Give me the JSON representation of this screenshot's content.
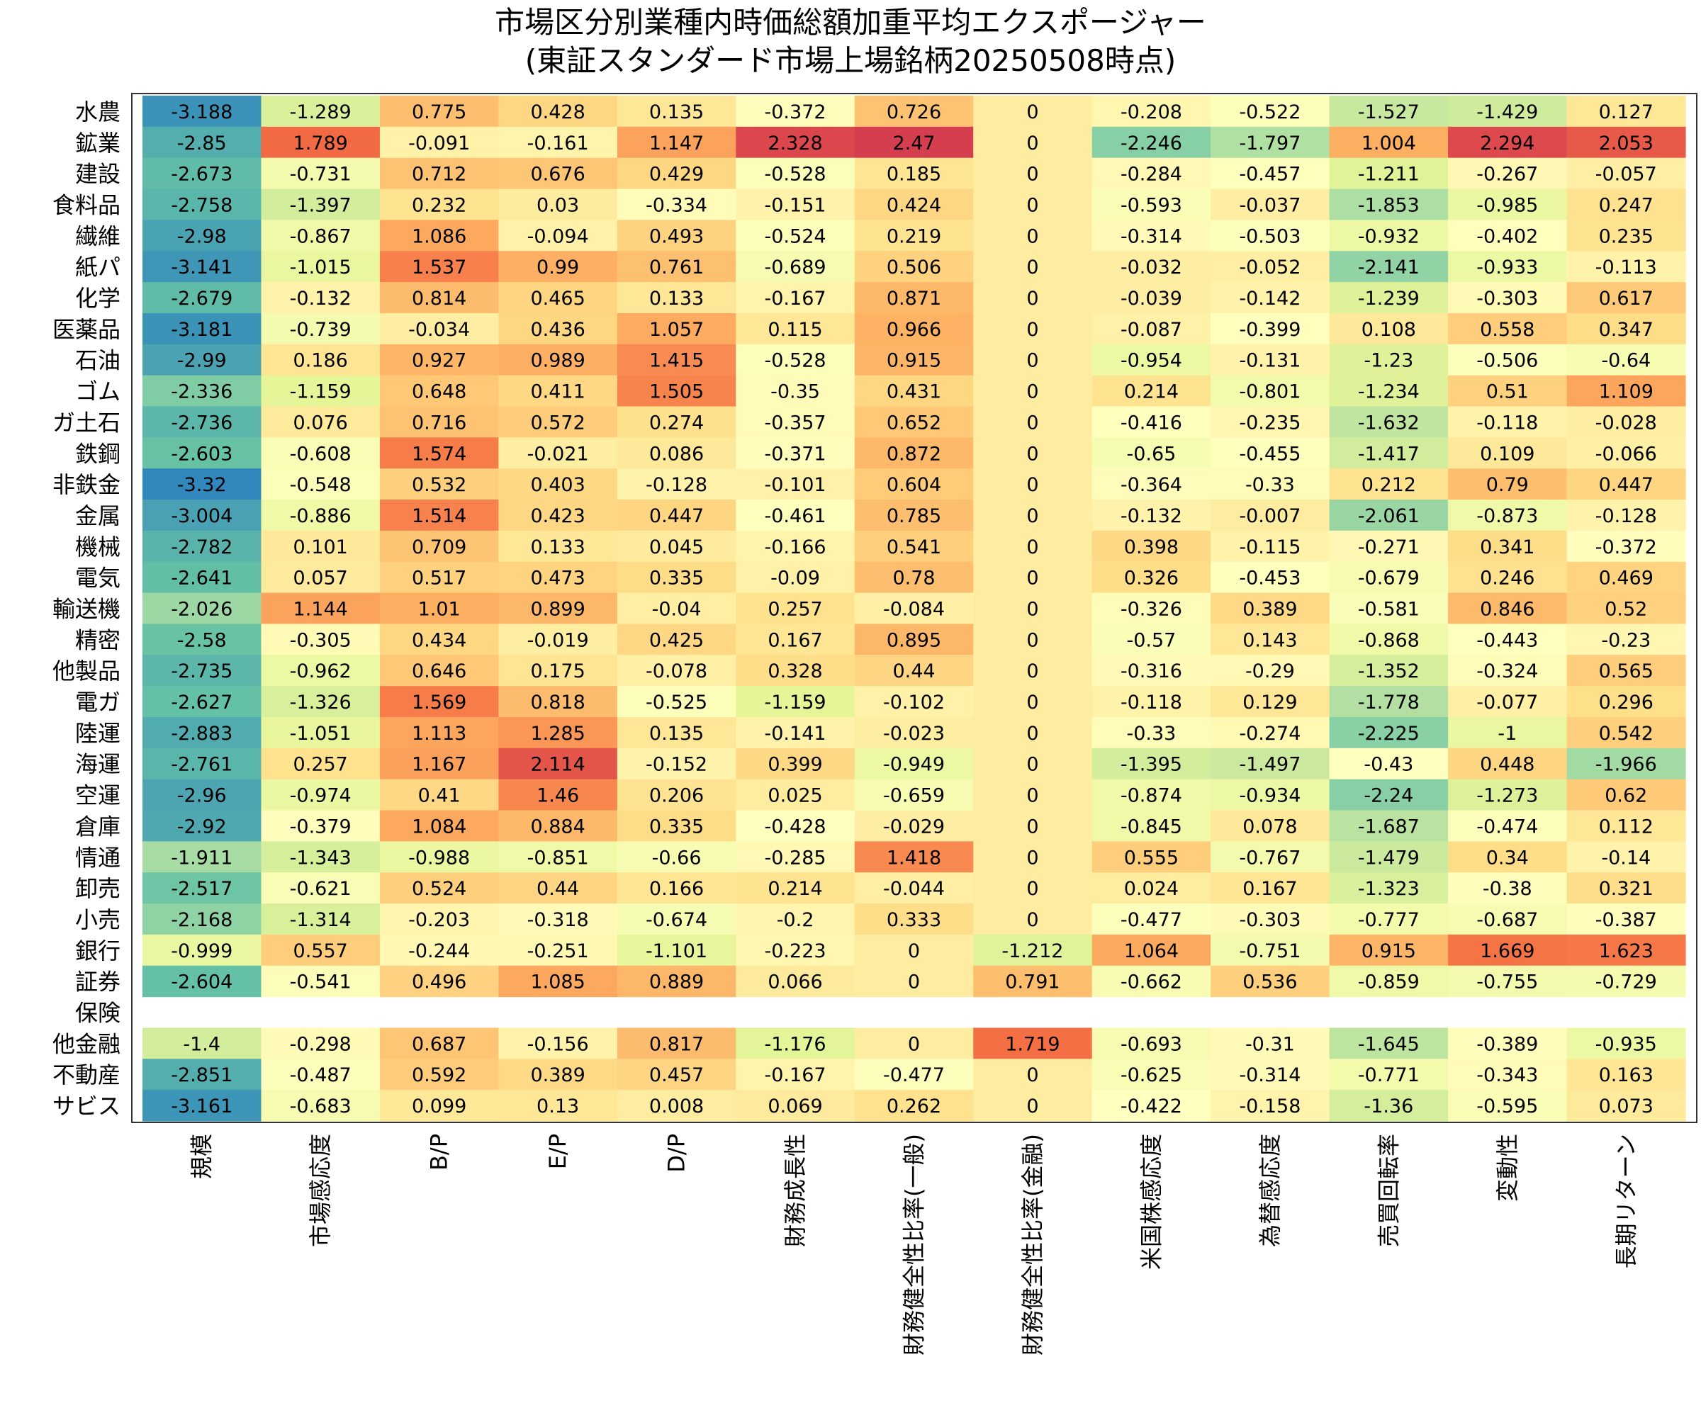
{
  "chart_data": {
    "type": "heatmap",
    "title": "市場区分別業種内時価総額加重平均エクスポージャー",
    "subtitle": "(東証スタンダード市場上場銘柄20250508時点)",
    "columns": [
      "規模",
      "市場感応度",
      "B/P",
      "E/P",
      "D/P",
      "財務成長性",
      "財務健全性比率(一般)",
      "財務健全性比率(金融)",
      "米国株感応度",
      "為替感応度",
      "売買回転率",
      "変動性",
      "長期リターン"
    ],
    "rows": [
      "水農",
      "鉱業",
      "建設",
      "食料品",
      "繊維",
      "紙パ",
      "化学",
      "医薬品",
      "石油",
      "ゴム",
      "ガ土石",
      "鉄鋼",
      "非鉄金",
      "金属",
      "機械",
      "電気",
      "輸送機",
      "精密",
      "他製品",
      "電ガ",
      "陸運",
      "海運",
      "空運",
      "倉庫",
      "情通",
      "卸売",
      "小売",
      "銀行",
      "証券",
      "保険",
      "他金融",
      "不動産",
      "サビス"
    ],
    "values": [
      [
        -3.188,
        -1.289,
        0.775,
        0.428,
        0.135,
        -0.372,
        0.726,
        0,
        -0.208,
        -0.522,
        -1.527,
        -1.429,
        0.127
      ],
      [
        -2.85,
        1.789,
        -0.091,
        -0.161,
        1.147,
        2.328,
        2.47,
        0,
        -2.246,
        -1.797,
        1.004,
        2.294,
        2.053
      ],
      [
        -2.673,
        -0.731,
        0.712,
        0.676,
        0.429,
        -0.528,
        0.185,
        0,
        -0.284,
        -0.457,
        -1.211,
        -0.267,
        -0.057
      ],
      [
        -2.758,
        -1.397,
        0.232,
        0.03,
        -0.334,
        -0.151,
        0.424,
        0,
        -0.593,
        -0.037,
        -1.853,
        -0.985,
        0.247
      ],
      [
        -2.98,
        -0.867,
        1.086,
        -0.094,
        0.493,
        -0.524,
        0.219,
        0,
        -0.314,
        -0.503,
        -0.932,
        -0.402,
        0.235
      ],
      [
        -3.141,
        -1.015,
        1.537,
        0.99,
        0.761,
        -0.689,
        0.506,
        0,
        -0.032,
        -0.052,
        -2.141,
        -0.933,
        -0.113
      ],
      [
        -2.679,
        -0.132,
        0.814,
        0.465,
        0.133,
        -0.167,
        0.871,
        0,
        -0.039,
        -0.142,
        -1.239,
        -0.303,
        0.617
      ],
      [
        -3.181,
        -0.739,
        -0.034,
        0.436,
        1.057,
        0.115,
        0.966,
        0,
        -0.087,
        -0.399,
        0.108,
        0.558,
        0.347
      ],
      [
        -2.99,
        0.186,
        0.927,
        0.989,
        1.415,
        -0.528,
        0.915,
        0,
        -0.954,
        -0.131,
        -1.23,
        -0.506,
        -0.64
      ],
      [
        -2.336,
        -1.159,
        0.648,
        0.411,
        1.505,
        -0.35,
        0.431,
        0,
        0.214,
        -0.801,
        -1.234,
        0.51,
        1.109
      ],
      [
        -2.736,
        0.076,
        0.716,
        0.572,
        0.274,
        -0.357,
        0.652,
        0,
        -0.416,
        -0.235,
        -1.632,
        -0.118,
        -0.028
      ],
      [
        -2.603,
        -0.608,
        1.574,
        -0.021,
        0.086,
        -0.371,
        0.872,
        0,
        -0.65,
        -0.455,
        -1.417,
        0.109,
        -0.066
      ],
      [
        -3.32,
        -0.548,
        0.532,
        0.403,
        -0.128,
        -0.101,
        0.604,
        0,
        -0.364,
        -0.33,
        0.212,
        0.79,
        0.447
      ],
      [
        -3.004,
        -0.886,
        1.514,
        0.423,
        0.447,
        -0.461,
        0.785,
        0,
        -0.132,
        -0.007,
        -2.061,
        -0.873,
        -0.128
      ],
      [
        -2.782,
        0.101,
        0.709,
        0.133,
        0.045,
        -0.166,
        0.541,
        0,
        0.398,
        -0.115,
        -0.271,
        0.341,
        -0.372
      ],
      [
        -2.641,
        0.057,
        0.517,
        0.473,
        0.335,
        -0.09,
        0.78,
        0,
        0.326,
        -0.453,
        -0.679,
        0.246,
        0.469
      ],
      [
        -2.026,
        1.144,
        1.01,
        0.899,
        -0.04,
        0.257,
        -0.084,
        0,
        -0.326,
        0.389,
        -0.581,
        0.846,
        0.52
      ],
      [
        -2.58,
        -0.305,
        0.434,
        -0.019,
        0.425,
        0.167,
        0.895,
        0,
        -0.57,
        0.143,
        -0.868,
        -0.443,
        -0.23
      ],
      [
        -2.735,
        -0.962,
        0.646,
        0.175,
        -0.078,
        0.328,
        0.44,
        0,
        -0.316,
        -0.29,
        -1.352,
        -0.324,
        0.565
      ],
      [
        -2.627,
        -1.326,
        1.569,
        0.818,
        -0.525,
        -1.159,
        -0.102,
        0,
        -0.118,
        0.129,
        -1.778,
        -0.077,
        0.296
      ],
      [
        -2.883,
        -1.051,
        1.113,
        1.285,
        0.135,
        -0.141,
        -0.023,
        0,
        -0.33,
        -0.274,
        -2.225,
        -1,
        0.542
      ],
      [
        -2.761,
        0.257,
        1.167,
        2.114,
        -0.152,
        0.399,
        -0.949,
        0,
        -1.395,
        -1.497,
        -0.43,
        0.448,
        -1.966
      ],
      [
        -2.96,
        -0.974,
        0.41,
        1.46,
        0.206,
        0.025,
        -0.659,
        0,
        -0.874,
        -0.934,
        -2.24,
        -1.273,
        0.62
      ],
      [
        -2.92,
        -0.379,
        1.084,
        0.884,
        0.335,
        -0.428,
        -0.029,
        0,
        -0.845,
        0.078,
        -1.687,
        -0.474,
        0.112
      ],
      [
        -1.911,
        -1.343,
        -0.988,
        -0.851,
        -0.66,
        -0.285,
        1.418,
        0,
        0.555,
        -0.767,
        -1.479,
        0.34,
        -0.14
      ],
      [
        -2.517,
        -0.621,
        0.524,
        0.44,
        0.166,
        0.214,
        -0.044,
        0,
        0.024,
        0.167,
        -1.323,
        -0.38,
        0.321
      ],
      [
        -2.168,
        -1.314,
        -0.203,
        -0.318,
        -0.674,
        -0.2,
        0.333,
        0,
        -0.477,
        -0.303,
        -0.777,
        -0.687,
        -0.387
      ],
      [
        -0.999,
        0.557,
        -0.244,
        -0.251,
        -1.101,
        -0.223,
        0,
        -1.212,
        1.064,
        -0.751,
        0.915,
        1.669,
        1.623
      ],
      [
        -2.604,
        -0.541,
        0.496,
        1.085,
        0.889,
        0.066,
        0,
        0.791,
        -0.662,
        0.536,
        -0.859,
        -0.755,
        -0.729
      ],
      [
        null,
        null,
        null,
        null,
        null,
        null,
        null,
        null,
        null,
        null,
        null,
        null,
        null
      ],
      [
        -1.4,
        -0.298,
        0.687,
        -0.156,
        0.817,
        -1.176,
        0,
        1.719,
        -0.693,
        -0.31,
        -1.645,
        -0.389,
        -0.935
      ],
      [
        -2.851,
        -0.487,
        0.592,
        0.389,
        0.457,
        -0.167,
        -0.477,
        0,
        -0.625,
        -0.314,
        -0.771,
        -0.343,
        0.163
      ],
      [
        -3.161,
        -0.683,
        0.099,
        0.13,
        0.008,
        0.069,
        0.262,
        0,
        -0.422,
        -0.158,
        -1.36,
        -0.595,
        0.073
      ]
    ],
    "color_scale": "Spectral_r",
    "colormap_stops": [
      "#3288bd",
      "#66c2a5",
      "#abdda4",
      "#e6f598",
      "#ffffbf",
      "#fee08b",
      "#fdae61",
      "#f46d43",
      "#d53e4f"
    ],
    "value_range": [
      -3.32,
      2.47
    ]
  }
}
